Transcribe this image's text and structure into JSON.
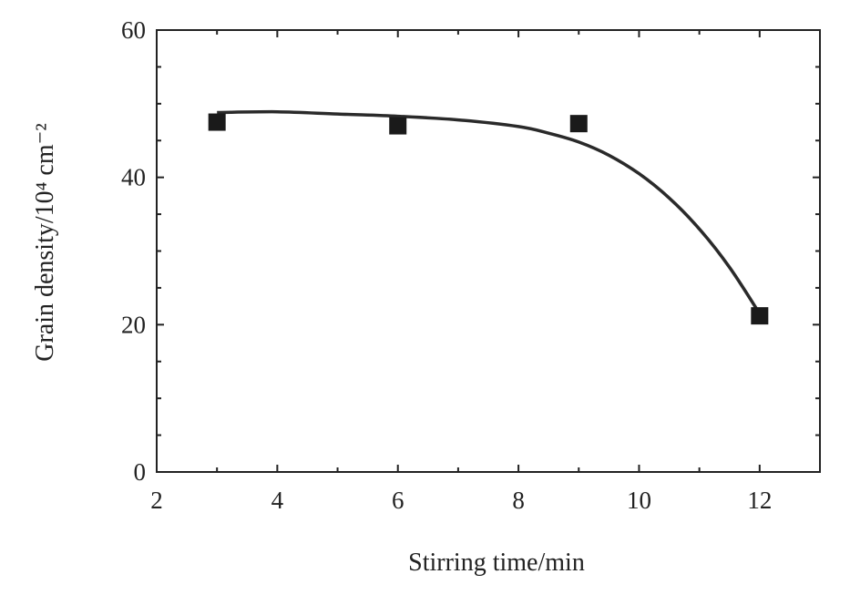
{
  "chart_data": {
    "type": "scatter",
    "xlabel": "Stirring time/min",
    "ylabel": "Grain density/10⁴ cm⁻²",
    "xlim": [
      2,
      13
    ],
    "ylim": [
      0,
      60
    ],
    "x_ticks": [
      2,
      4,
      6,
      8,
      10,
      12
    ],
    "y_ticks": [
      0,
      20,
      40,
      60
    ],
    "grid": false,
    "legend": "none",
    "marker": "square",
    "colors": {
      "marker": "#1a1a1a",
      "curve": "#2a2a2a",
      "axis": "#222222"
    },
    "series": [
      {
        "points": [
          {
            "x": 3,
            "y": 47.5
          },
          {
            "x": 6,
            "y": 47.0
          },
          {
            "x": 9,
            "y": 47.3
          },
          {
            "x": 12,
            "y": 21.2
          }
        ]
      }
    ],
    "fit_curve": {
      "x": [
        3,
        4,
        5,
        6,
        7,
        8,
        8.5,
        9,
        9.5,
        10,
        10.5,
        11,
        11.5,
        12
      ],
      "y": [
        48.8,
        48.9,
        48.6,
        48.3,
        47.8,
        46.9,
        46.0,
        44.8,
        43.0,
        40.5,
        37.2,
        33.0,
        27.8,
        21.5
      ]
    }
  }
}
